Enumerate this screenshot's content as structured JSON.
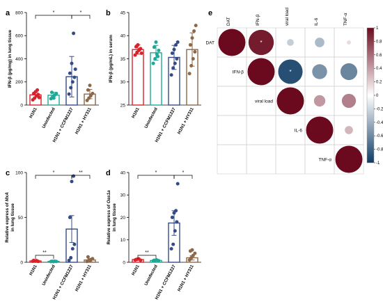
{
  "chart_data": [
    {
      "panel": "a",
      "type": "bar",
      "ylabel": "IFN-β (pg/mg) in lung tissue",
      "ylim": [
        0,
        800
      ],
      "yticks": [
        0,
        200,
        400,
        600,
        800
      ],
      "categories": [
        "H1N1",
        "Uninfected",
        "H1N1 + CCFM1227",
        "H1N1 + HY311"
      ],
      "colors": [
        "#d9222a",
        "#1ea898",
        "#344b86",
        "#8c6748"
      ],
      "means": [
        88,
        85,
        245,
        95
      ],
      "errors": [
        20,
        25,
        175,
        40
      ],
      "points": [
        [
          45,
          60,
          80,
          90,
          100,
          115,
          130,
          65
        ],
        [
          55,
          70,
          85,
          100,
          110,
          60
        ],
        [
          95,
          150,
          200,
          240,
          275,
          360,
          620,
          310
        ],
        [
          40,
          60,
          80,
          100,
          130,
          170
        ]
      ],
      "significance": [
        {
          "from": 0,
          "to": 2,
          "label": "*"
        },
        {
          "from": 2,
          "to": 3,
          "label": "*"
        }
      ]
    },
    {
      "panel": "b",
      "type": "bar",
      "ylabel": "IFN-β (pg/mL) in serum",
      "ylim": [
        25,
        45
      ],
      "yticks": [
        25,
        30,
        35,
        40,
        45
      ],
      "categories": [
        "H1N1",
        "Uninfected",
        "H1N1 + CCFM1227",
        "H1N1 + HY311"
      ],
      "colors": [
        "#d9222a",
        "#1ea898",
        "#344b86",
        "#8c6748"
      ],
      "means": [
        37,
        36.3,
        35.3,
        37
      ],
      "errors": [
        1.0,
        1.6,
        2.6,
        3.6
      ],
      "points": [
        [
          35.8,
          36.4,
          36.8,
          37.2,
          37.6,
          38.0,
          37.0,
          36.2
        ],
        [
          34.0,
          35.0,
          36.0,
          36.8,
          37.5,
          38.6,
          35.5
        ],
        [
          31.5,
          33.0,
          34.0,
          35.0,
          36.2,
          37.0,
          38.0,
          38.6
        ],
        [
          31.8,
          33.5,
          35.0,
          36.5,
          38.0,
          39.5,
          41.0,
          42.2
        ]
      ],
      "significance": []
    },
    {
      "panel": "c",
      "type": "bar",
      "ylabel_prefix": "Relative express of ",
      "ylabel_gene": "MxA",
      "ylabel2": "in lung tissue",
      "ylim": [
        0,
        100
      ],
      "yticks": [
        0,
        50,
        100
      ],
      "categories": [
        "H1N1",
        "Uninfected",
        "H1N1 + CCFM1227",
        "H1N1 + HY311"
      ],
      "colors": [
        "#d9222a",
        "#1ea898",
        "#344b86",
        "#8c6748"
      ],
      "means": [
        1.5,
        1.0,
        37,
        2.5
      ],
      "errors": [
        0.4,
        0.3,
        15,
        1.5
      ],
      "points": [
        [
          1.2,
          1.5,
          1.8,
          1.0,
          2.0,
          1.4
        ],
        [
          0.8,
          1.0,
          1.2,
          0.9,
          1.1,
          0.7
        ],
        [
          2,
          5,
          15,
          20,
          50,
          90,
          96
        ],
        [
          1,
          2,
          3,
          4,
          6,
          1.5
        ]
      ],
      "significance": [
        {
          "from": 0,
          "to": 1,
          "label": "**"
        },
        {
          "from": 0,
          "to": 2,
          "label": "*"
        },
        {
          "from": 2,
          "to": 3,
          "label": "**"
        }
      ]
    },
    {
      "panel": "d",
      "type": "bar",
      "ylabel_prefix": "Relative express of ",
      "ylabel_gene": "Oas1a",
      "ylabel2": "in lung tissue",
      "ylim": [
        0,
        40
      ],
      "yticks": [
        0,
        10,
        20,
        30,
        40
      ],
      "categories": [
        "H1N1",
        "Uninfected",
        "H1N1 + CCFM1227",
        "H1N1 + HY311"
      ],
      "colors": [
        "#d9222a",
        "#1ea898",
        "#344b86",
        "#8c6748"
      ],
      "means": [
        1.2,
        0.8,
        17.5,
        2.0
      ],
      "errors": [
        0.3,
        0.2,
        5.5,
        1.0
      ],
      "points": [
        [
          1.0,
          1.3,
          1.5,
          0.9,
          1.2
        ],
        [
          0.6,
          0.8,
          1.0,
          0.7,
          0.9
        ],
        [
          6,
          8,
          14,
          18,
          20,
          22,
          23,
          35
        ],
        [
          1,
          2,
          3,
          4,
          5,
          5.5
        ]
      ],
      "significance": [
        {
          "from": 0,
          "to": 1,
          "label": "**"
        },
        {
          "from": 0,
          "to": 2,
          "label": "*"
        },
        {
          "from": 2,
          "to": 3,
          "label": "*"
        }
      ]
    },
    {
      "panel": "e",
      "type": "heatmap",
      "labels": [
        "DAT",
        "IFN-β",
        "viral load",
        "IL-6",
        "TNF-α"
      ],
      "matrix": [
        [
          1,
          0.93,
          -0.25,
          -0.35,
          0.15
        ],
        [
          0.93,
          1,
          -0.9,
          -0.55,
          -0.62
        ],
        [
          -0.25,
          -0.9,
          1,
          0.42,
          0.52
        ],
        [
          -0.35,
          -0.55,
          0.42,
          1,
          0.3
        ],
        [
          0.15,
          -0.62,
          0.52,
          0.3,
          1
        ]
      ],
      "stars": [
        [
          0,
          1
        ],
        [
          1,
          2
        ]
      ],
      "star_label": "*",
      "colorbar_ticks": [
        "1",
        "0.8",
        "0.6",
        "0.4",
        "0.2",
        "0",
        "-0.2",
        "-0.4",
        "-0.6",
        "-0.8",
        "-1"
      ],
      "colorscale": [
        "#0f3b63",
        "#ffffff",
        "#6b0a1e"
      ]
    }
  ]
}
